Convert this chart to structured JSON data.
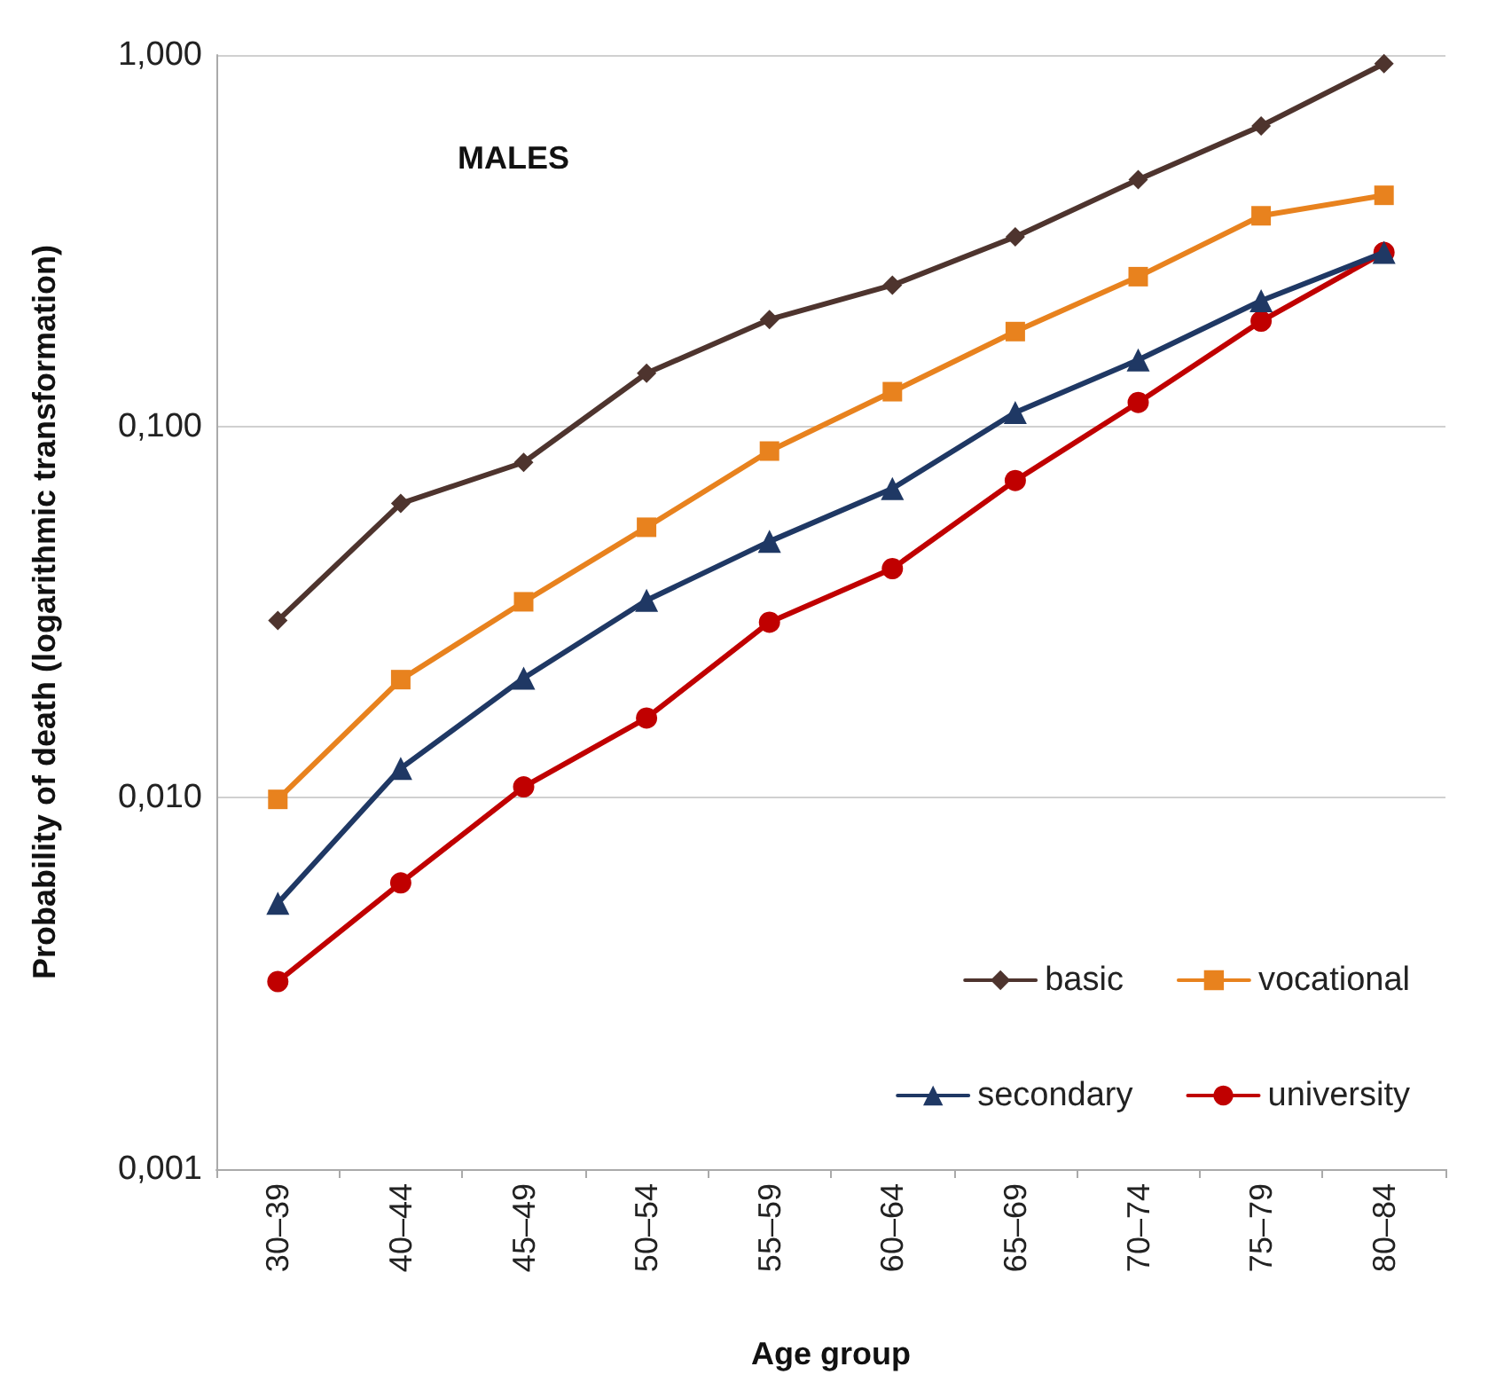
{
  "chart_data": {
    "type": "line",
    "xlabel": "Age group",
    "ylabel": "Probability of death (logarithmic transformation)",
    "annotations": [
      "MALES"
    ],
    "categories": [
      "30–39",
      "40–44",
      "45–49",
      "50–54",
      "55–59",
      "60–64",
      "65–69",
      "70–74",
      "75–79",
      "80–84"
    ],
    "series": [
      {
        "name": "basic",
        "color": "#4e342e",
        "marker": "diamond",
        "values": [
          0.03,
          0.062,
          0.08,
          0.139,
          0.194,
          0.24,
          0.324,
          0.462,
          0.644,
          0.948
        ]
      },
      {
        "name": "vocational",
        "color": "#e8821e",
        "marker": "square",
        "values": [
          0.0099,
          0.0208,
          0.0337,
          0.0535,
          0.0858,
          0.124,
          0.18,
          0.253,
          0.369,
          0.419
        ]
      },
      {
        "name": "secondary",
        "color": "#1f3864",
        "marker": "triangle",
        "values": [
          0.0052,
          0.012,
          0.021,
          0.034,
          0.049,
          0.068,
          0.109,
          0.151,
          0.218,
          0.294
        ]
      },
      {
        "name": "university",
        "color": "#c00000",
        "marker": "circle",
        "values": [
          0.0032,
          0.0059,
          0.0107,
          0.0164,
          0.0297,
          0.0414,
          0.0715,
          0.116,
          0.192,
          0.294
        ]
      }
    ],
    "log": "y",
    "ylim": [
      0.001,
      1
    ],
    "yticks": [
      {
        "value": 0.001,
        "label": "0,001"
      },
      {
        "value": 0.01,
        "label": "0,010"
      },
      {
        "value": 0.1,
        "label": "0,100"
      },
      {
        "value": 1,
        "label": "1,000"
      }
    ],
    "grid": "y",
    "legend": "bottom right",
    "line_style": "solid"
  }
}
